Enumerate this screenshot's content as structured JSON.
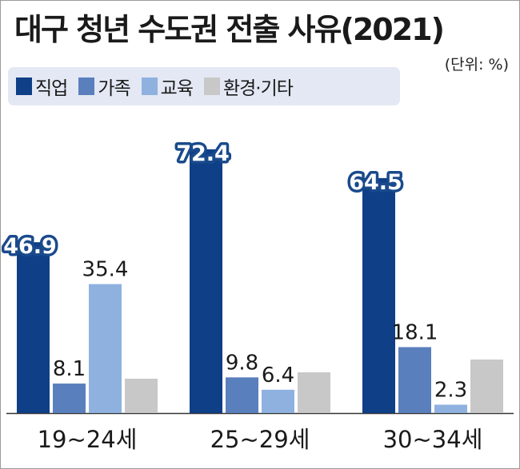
{
  "title": "대구 청년 수도권 전출 사유(2021)",
  "unit_note": "(단위: %)",
  "colors": {
    "job": "#0f3f86",
    "family": "#5a7fbd",
    "education": "#8fb1e0",
    "env_other": "#c8c8c8"
  },
  "chart_data": {
    "type": "bar",
    "title": "대구 청년 수도권 전출 사유(2021)",
    "unit": "%",
    "categories": [
      "19~24세",
      "25~29세",
      "30~34세"
    ],
    "series": [
      {
        "name": "직업",
        "values": [
          46.9,
          72.4,
          64.5
        ],
        "color": "#0f3f86"
      },
      {
        "name": "가족",
        "values": [
          8.1,
          9.8,
          18.1
        ],
        "color": "#5a7fbd"
      },
      {
        "name": "교육",
        "values": [
          35.4,
          6.4,
          2.3
        ],
        "color": "#8fb1e0"
      },
      {
        "name": "환경·기타",
        "values": [
          null,
          null,
          null
        ],
        "color": "#c8c8c8"
      }
    ],
    "highlight_series": "직업",
    "legend_placement": "top-left",
    "grid": false
  }
}
